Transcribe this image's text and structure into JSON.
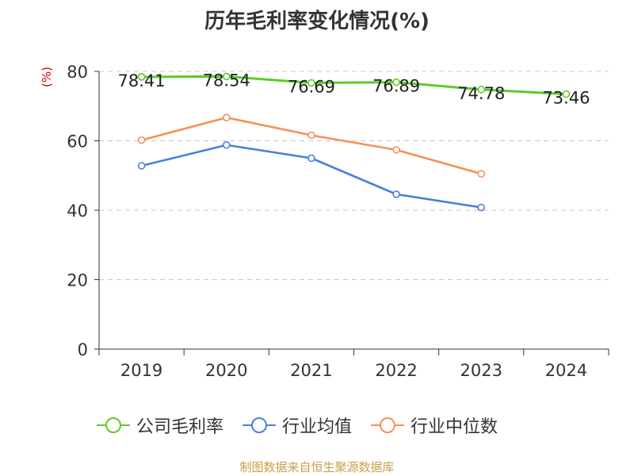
{
  "chart_data": {
    "type": "line",
    "title": "历年毛利率变化情况(%)",
    "ylabel": "(%)",
    "xlabel": "",
    "categories": [
      "2019",
      "2020",
      "2021",
      "2022",
      "2023",
      "2024"
    ],
    "ylim": [
      0,
      80
    ],
    "yticks": [
      0,
      20,
      40,
      60,
      80
    ],
    "grid": "horizontal-dashed",
    "legend_position": "bottom",
    "series": [
      {
        "name": "公司毛利率",
        "color": "#5ccb2a",
        "values": [
          78.41,
          78.54,
          76.69,
          76.89,
          74.78,
          73.46
        ],
        "labels": [
          "78.41",
          "78.54",
          "76.69",
          "76.89",
          "74.78",
          "73.46"
        ]
      },
      {
        "name": "行业均值",
        "color": "#4b7fdc",
        "values": [
          52.8,
          58.8,
          55.0,
          44.6,
          40.8,
          null
        ]
      },
      {
        "name": "行业中位数",
        "color": "#f5915a",
        "values": [
          60.2,
          66.7,
          61.6,
          57.4,
          50.5,
          null
        ]
      }
    ]
  },
  "source": "制图数据来自恒生聚源数据库"
}
